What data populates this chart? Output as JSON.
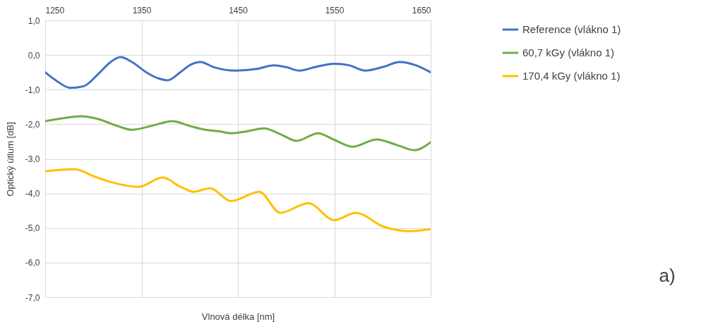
{
  "chart_data": {
    "type": "line",
    "xlabel": "Vlnová délka [nm]",
    "ylabel": "Optický útlum [dB]",
    "xlim": [
      1250,
      1650
    ],
    "xticks": [
      1250,
      1350,
      1450,
      1550,
      1650
    ],
    "ylim": [
      -7,
      1
    ],
    "yticks": [
      {
        "value": -7,
        "label": "-7,0"
      },
      {
        "value": -6,
        "label": "-6,0"
      },
      {
        "value": -5,
        "label": "-5,0"
      },
      {
        "value": -4,
        "label": "-4,0"
      },
      {
        "value": -3,
        "label": "-3,0"
      },
      {
        "value": -2,
        "label": "-2,0"
      },
      {
        "value": -1,
        "label": "-1,0"
      },
      {
        "value": 0,
        "label": "0,0"
      },
      {
        "value": 1,
        "label": "1,0"
      }
    ],
    "grid": true,
    "legend": "right",
    "line_style": "solid",
    "marker": "none",
    "annotations": [
      "a)"
    ],
    "series": [
      {
        "name": "Reference (vlákno 1)",
        "color": "#4472c4",
        "x": [
          1250,
          1262,
          1276,
          1290,
          1305,
          1318,
          1328,
          1340,
          1355,
          1368,
          1377,
          1390,
          1401,
          1411,
          1425,
          1448,
          1470,
          1487,
          1500,
          1514,
          1530,
          1550,
          1566,
          1582,
          1600,
          1618,
          1635,
          1650
        ],
        "values": [
          -0.5,
          -0.75,
          -0.95,
          -0.9,
          -0.55,
          -0.2,
          -0.06,
          -0.2,
          -0.5,
          -0.68,
          -0.73,
          -0.5,
          -0.28,
          -0.2,
          -0.35,
          -0.45,
          -0.4,
          -0.3,
          -0.35,
          -0.45,
          -0.35,
          -0.25,
          -0.3,
          -0.45,
          -0.35,
          -0.2,
          -0.3,
          -0.5
        ]
      },
      {
        "name": "60,7 kGy (vlákno 1)",
        "color": "#70ad47",
        "x": [
          1250,
          1270,
          1287,
          1305,
          1325,
          1340,
          1360,
          1382,
          1400,
          1416,
          1430,
          1443,
          1460,
          1477,
          1495,
          1511,
          1533,
          1550,
          1569,
          1594,
          1615,
          1633,
          1650
        ],
        "values": [
          -1.91,
          -1.82,
          -1.77,
          -1.85,
          -2.05,
          -2.16,
          -2.05,
          -1.91,
          -2.05,
          -2.16,
          -2.2,
          -2.26,
          -2.2,
          -2.12,
          -2.3,
          -2.48,
          -2.26,
          -2.45,
          -2.65,
          -2.44,
          -2.6,
          -2.75,
          -2.52
        ]
      },
      {
        "name": "170,4 kGy (vlákno 1)",
        "color": "#ffc000",
        "x": [
          1250,
          1265,
          1281,
          1300,
          1318,
          1347,
          1372,
          1390,
          1404,
          1421,
          1443,
          1472,
          1494,
          1523,
          1550,
          1572,
          1602,
          1628,
          1650
        ],
        "values": [
          -3.36,
          -3.32,
          -3.3,
          -3.5,
          -3.67,
          -3.81,
          -3.54,
          -3.8,
          -3.95,
          -3.85,
          -4.22,
          -3.95,
          -4.56,
          -4.28,
          -4.77,
          -4.56,
          -4.97,
          -5.09,
          -5.03
        ]
      }
    ]
  }
}
